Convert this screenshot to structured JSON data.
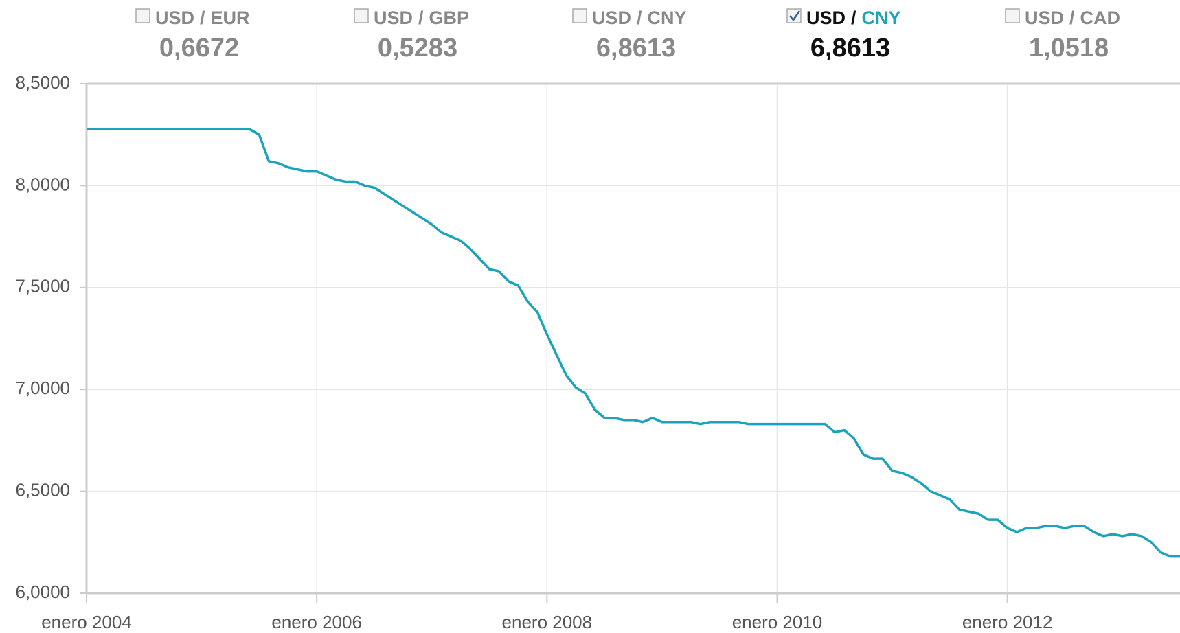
{
  "chart_data": {
    "type": "line",
    "pairs": [
      {
        "base": "USD",
        "sep": "/",
        "quote": "EUR",
        "value": "0,6672",
        "checked": false
      },
      {
        "base": "USD",
        "sep": "/",
        "quote": "GBP",
        "value": "0,5283",
        "checked": false
      },
      {
        "base": "USD",
        "sep": "/",
        "quote": "CNY",
        "value": "6,8613",
        "checked": false
      },
      {
        "base": "USD",
        "sep": "/",
        "quote": "CNY",
        "value": "6,8613",
        "checked": true
      },
      {
        "base": "USD",
        "sep": "/",
        "quote": "CAD",
        "value": "1,0518",
        "checked": false
      }
    ],
    "x": [
      "2004-01",
      "2004-02",
      "2004-03",
      "2004-04",
      "2004-05",
      "2004-06",
      "2004-07",
      "2004-08",
      "2004-09",
      "2004-10",
      "2004-11",
      "2004-12",
      "2005-01",
      "2005-02",
      "2005-03",
      "2005-04",
      "2005-05",
      "2005-06",
      "2005-07",
      "2005-08",
      "2005-09",
      "2005-10",
      "2005-11",
      "2005-12",
      "2006-01",
      "2006-02",
      "2006-03",
      "2006-04",
      "2006-05",
      "2006-06",
      "2006-07",
      "2006-08",
      "2006-09",
      "2006-10",
      "2006-11",
      "2006-12",
      "2007-01",
      "2007-02",
      "2007-03",
      "2007-04",
      "2007-05",
      "2007-06",
      "2007-07",
      "2007-08",
      "2007-09",
      "2007-10",
      "2007-11",
      "2007-12",
      "2008-01",
      "2008-02",
      "2008-03",
      "2008-04",
      "2008-05",
      "2008-06",
      "2008-07",
      "2008-08",
      "2008-09",
      "2008-10",
      "2008-11",
      "2008-12",
      "2009-01",
      "2009-02",
      "2009-03",
      "2009-04",
      "2009-05",
      "2009-06",
      "2009-07",
      "2009-08",
      "2009-09",
      "2009-10",
      "2009-11",
      "2009-12",
      "2010-01",
      "2010-02",
      "2010-03",
      "2010-04",
      "2010-05",
      "2010-06",
      "2010-07",
      "2010-08",
      "2010-09",
      "2010-10",
      "2010-11",
      "2010-12",
      "2011-01",
      "2011-02",
      "2011-03",
      "2011-04",
      "2011-05",
      "2011-06",
      "2011-07",
      "2011-08",
      "2011-09",
      "2011-10",
      "2011-11",
      "2011-12",
      "2012-01",
      "2012-02",
      "2012-03",
      "2012-04",
      "2012-05",
      "2012-06",
      "2012-07",
      "2012-08",
      "2012-09",
      "2012-10",
      "2012-11",
      "2012-12",
      "2013-01",
      "2013-02",
      "2013-03",
      "2013-04",
      "2013-05",
      "2013-06",
      "2013-07"
    ],
    "series": [
      {
        "name": "USD / CNY",
        "color": "#1aa3bb",
        "values": [
          8.277,
          8.277,
          8.277,
          8.277,
          8.277,
          8.277,
          8.277,
          8.277,
          8.277,
          8.277,
          8.277,
          8.277,
          8.277,
          8.277,
          8.277,
          8.277,
          8.277,
          8.277,
          8.25,
          8.12,
          8.11,
          8.09,
          8.08,
          8.07,
          8.07,
          8.05,
          8.03,
          8.02,
          8.02,
          8.0,
          7.99,
          7.96,
          7.93,
          7.9,
          7.87,
          7.84,
          7.81,
          7.77,
          7.75,
          7.73,
          7.69,
          7.64,
          7.59,
          7.58,
          7.53,
          7.51,
          7.43,
          7.38,
          7.27,
          7.17,
          7.07,
          7.01,
          6.98,
          6.9,
          6.86,
          6.86,
          6.85,
          6.85,
          6.84,
          6.86,
          6.84,
          6.84,
          6.84,
          6.84,
          6.83,
          6.84,
          6.84,
          6.84,
          6.84,
          6.83,
          6.83,
          6.83,
          6.83,
          6.83,
          6.83,
          6.83,
          6.83,
          6.83,
          6.79,
          6.8,
          6.76,
          6.68,
          6.66,
          6.66,
          6.6,
          6.59,
          6.57,
          6.54,
          6.5,
          6.48,
          6.46,
          6.41,
          6.4,
          6.39,
          6.36,
          6.36,
          6.32,
          6.3,
          6.32,
          6.32,
          6.33,
          6.33,
          6.32,
          6.33,
          6.33,
          6.3,
          6.28,
          6.29,
          6.28,
          6.29,
          6.28,
          6.25,
          6.2,
          6.18,
          6.18
        ]
      }
    ],
    "xlim": [
      "2004-01",
      "2013-07"
    ],
    "xticks": [
      {
        "value": "2004-01",
        "label": "enero 2004"
      },
      {
        "value": "2006-01",
        "label": "enero 2006"
      },
      {
        "value": "2008-01",
        "label": "enero 2008"
      },
      {
        "value": "2010-01",
        "label": "enero 2010"
      },
      {
        "value": "2012-01",
        "label": "enero 2012"
      }
    ],
    "ylim": [
      6,
      8.5
    ],
    "yticks": [
      {
        "value": 6,
        "label": "6,0000"
      },
      {
        "value": 6.5,
        "label": "6,5000"
      },
      {
        "value": 7,
        "label": "7,0000"
      },
      {
        "value": 7.5,
        "label": "7,5000"
      },
      {
        "value": 8,
        "label": "8,0000"
      },
      {
        "value": 8.5,
        "label": "8,5000"
      }
    ],
    "grid": true
  }
}
